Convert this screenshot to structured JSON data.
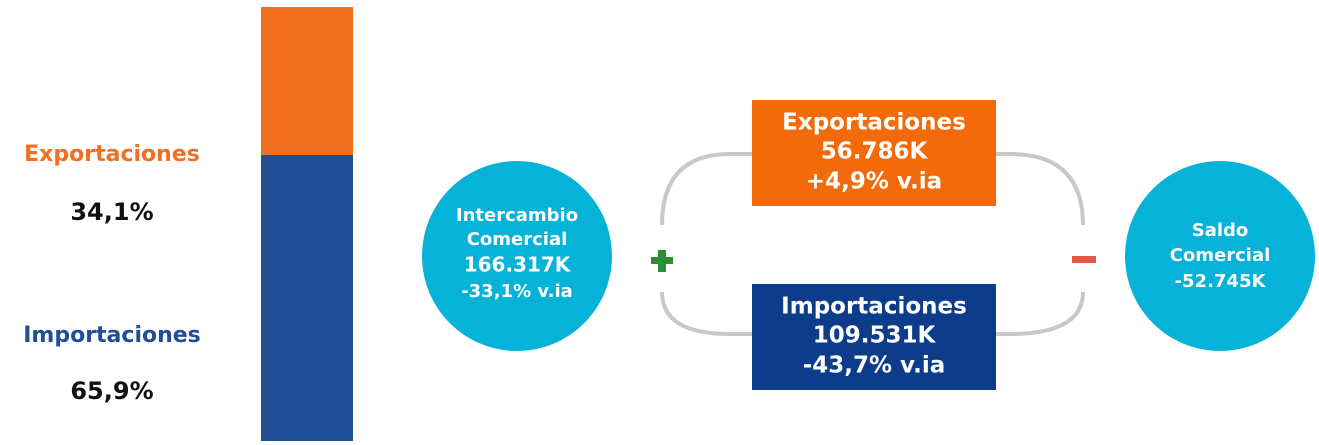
{
  "share": {
    "names": [
      "Exportaciones",
      "Importaciones"
    ],
    "values": [
      34.1,
      65.9
    ],
    "value_labels": [
      "34,1%",
      "65,9%"
    ],
    "colors": [
      "#f07020",
      "#1f5096"
    ]
  },
  "intercambio": {
    "lines": [
      "Intercambio",
      "Comercial",
      "166.317K",
      "-33,1% v.ia"
    ]
  },
  "exportaciones": {
    "lines": [
      "Exportaciones",
      "56.786K",
      "+4,9% v.ia"
    ]
  },
  "importaciones": {
    "lines": [
      "Importaciones",
      "109.531K",
      "-43,7% v.ia"
    ]
  },
  "saldo": {
    "lines": [
      "Saldo",
      "Comercial",
      "-52.745K"
    ]
  }
}
